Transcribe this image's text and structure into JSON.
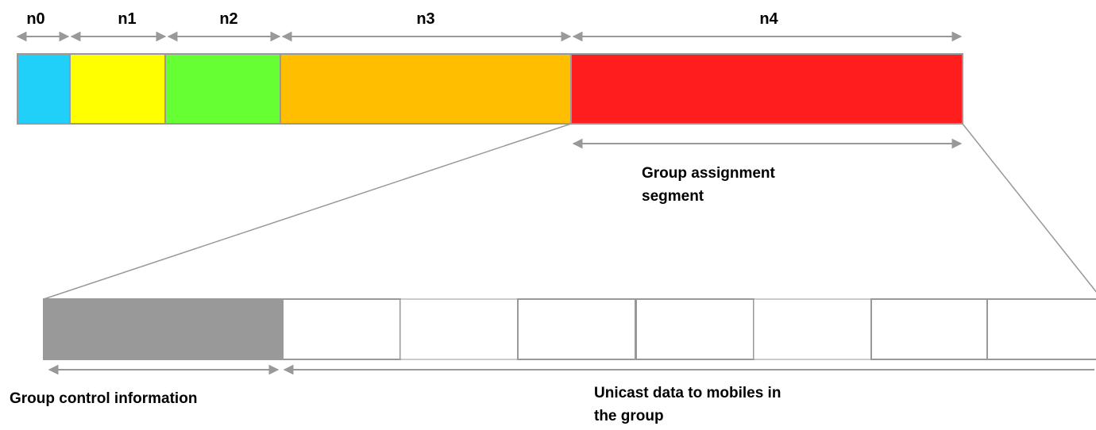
{
  "colors": {
    "n0": "#20d0f8",
    "n1": "#ffff00",
    "n2": "#66ff33",
    "n3": "#ffbf00",
    "n4": "#ff1e1e",
    "group_control": "#999999",
    "outline": "#999999",
    "arrow": "#999999"
  },
  "segments": [
    {
      "label": "n0"
    },
    {
      "label": "n1"
    },
    {
      "label": "n2"
    },
    {
      "label": "n3"
    },
    {
      "label": "n4"
    }
  ],
  "captions": {
    "group_assignment_line1": "Group assignment",
    "group_assignment_line2": "segment",
    "group_control": "Group control information",
    "unicast_line1": "Unicast data to mobiles in",
    "unicast_line2": "the group"
  }
}
